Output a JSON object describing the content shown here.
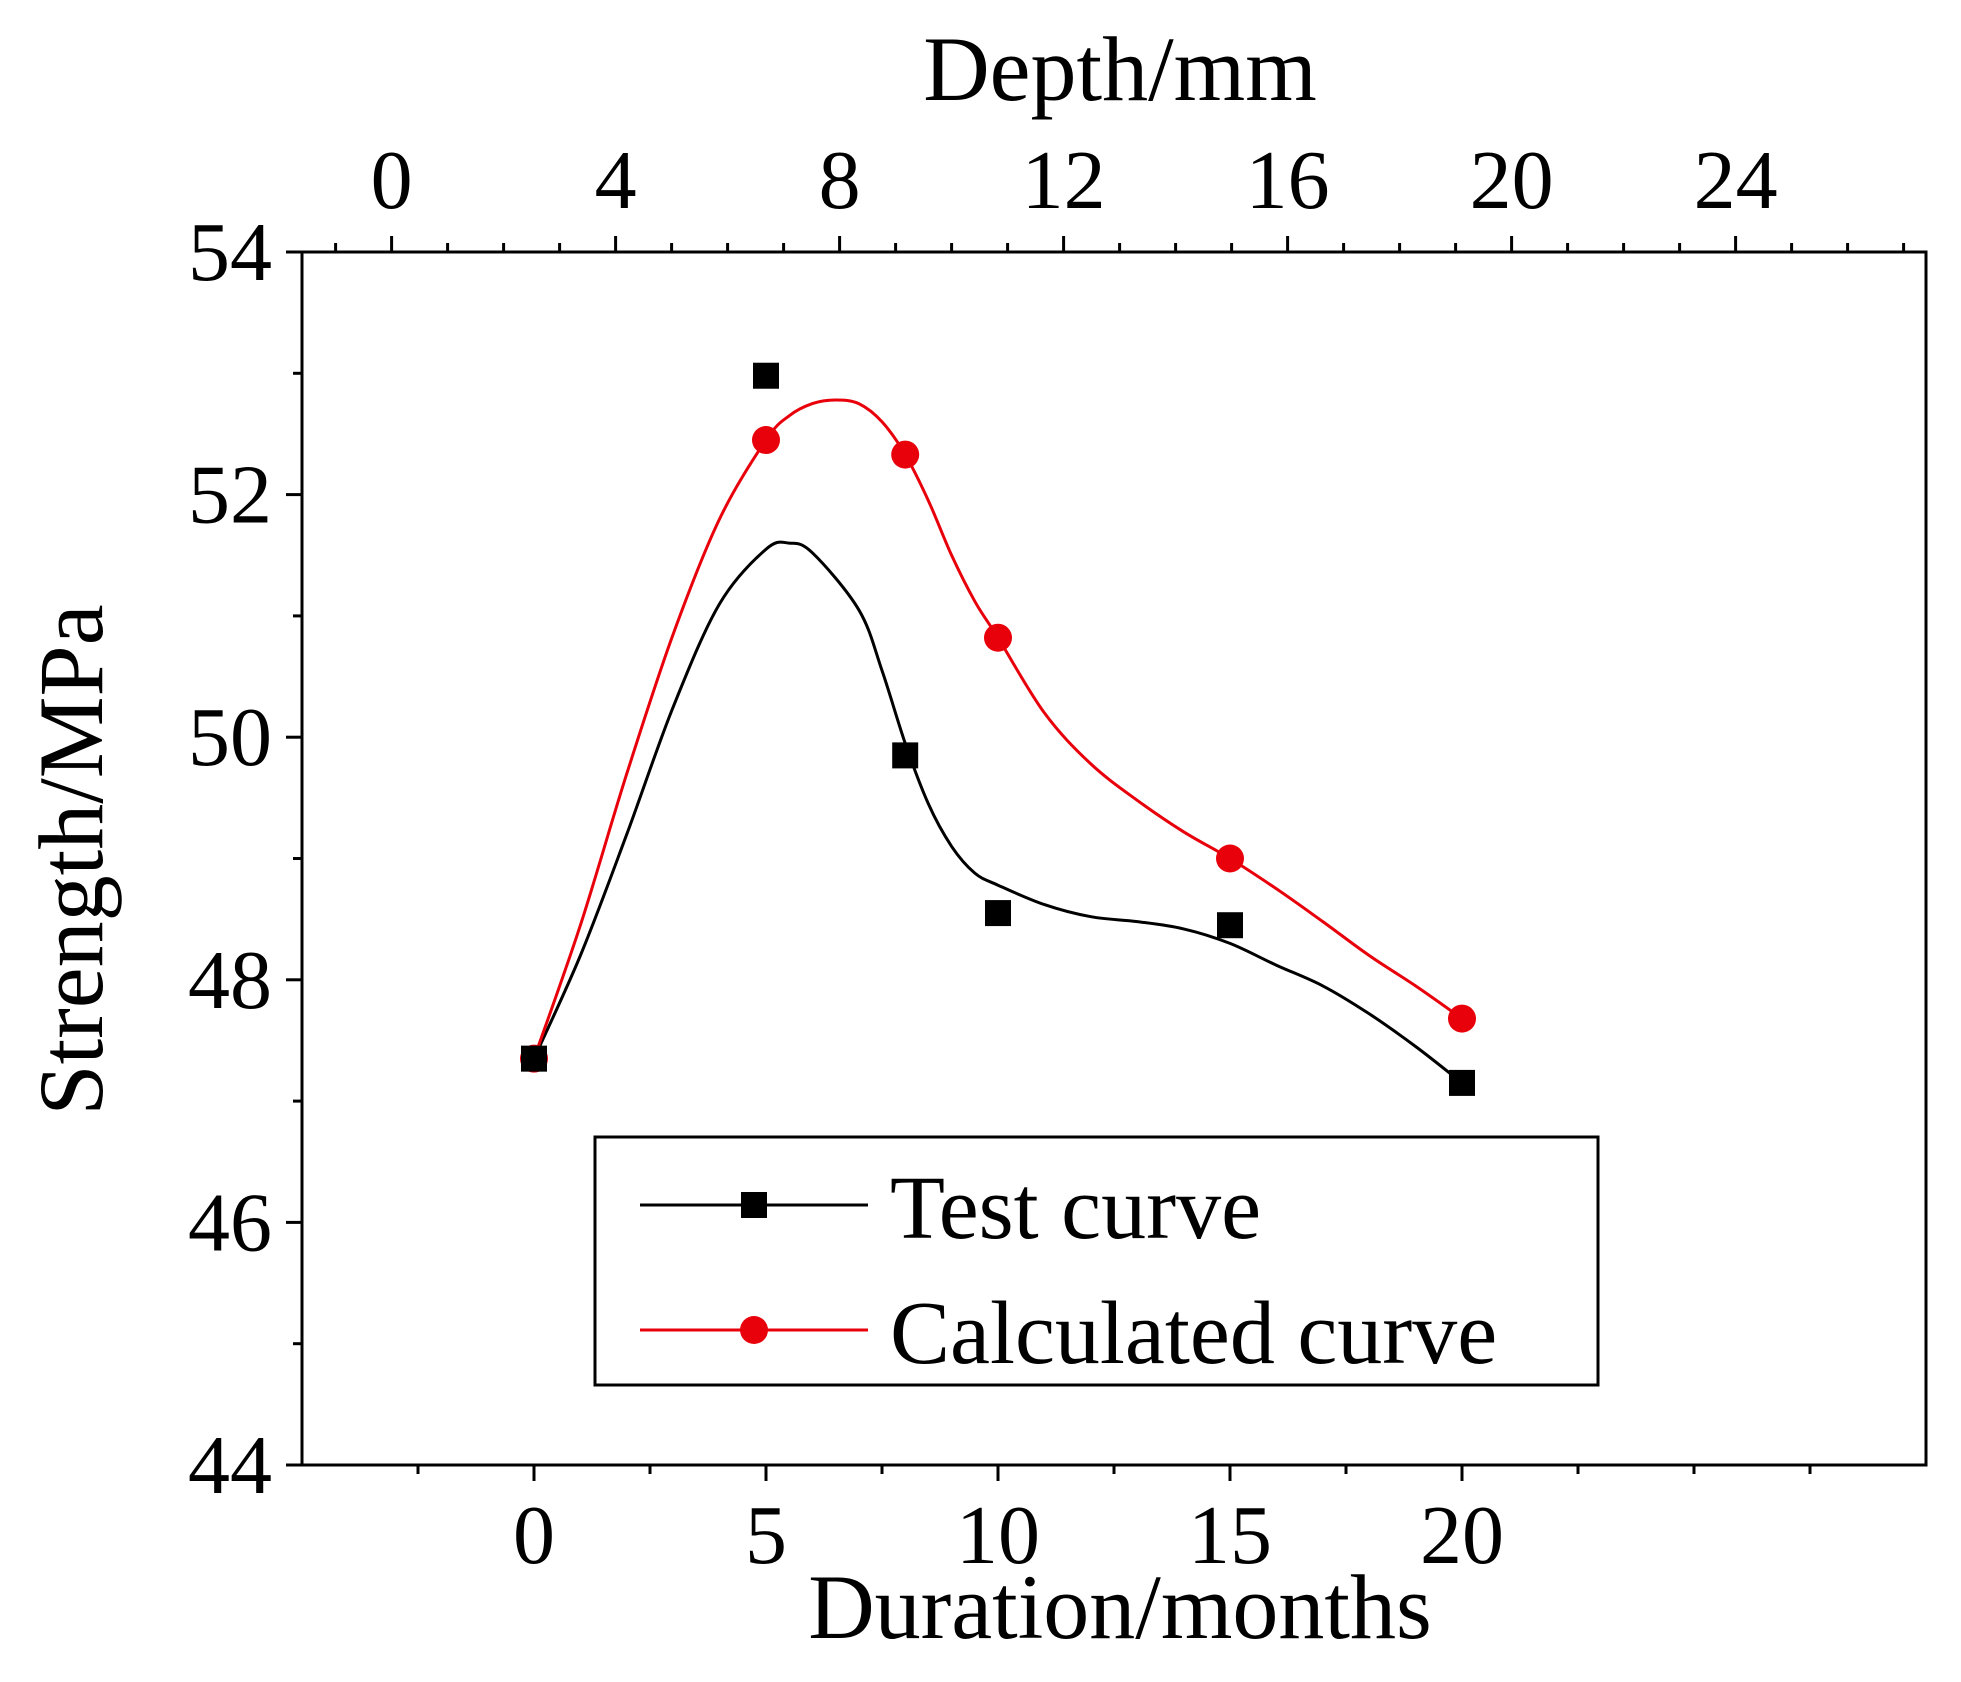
{
  "chart_data": {
    "type": "line",
    "title": "",
    "xlabel": "Duration/months",
    "x2label": "Depth/mm",
    "ylabel": "Strength/MPa",
    "xlim": [
      -5,
      30
    ],
    "x2lim": [
      -1.6,
      27.4
    ],
    "ylim": [
      44,
      54
    ],
    "xticks": [
      "0",
      "5",
      "10",
      "15",
      "20"
    ],
    "x2ticks": [
      "0",
      "4",
      "8",
      "12",
      "16",
      "20",
      "24"
    ],
    "yticks": [
      "44",
      "46",
      "48",
      "50",
      "52",
      "54"
    ],
    "legend_position": "bottom-center",
    "series": [
      {
        "name": "Test curve",
        "color": "#000000",
        "marker": "square",
        "x": [
          0,
          5,
          8,
          10,
          15,
          20
        ],
        "values": [
          47.35,
          52.98,
          49.85,
          48.55,
          48.45,
          47.15
        ],
        "fit_x": [
          0,
          1,
          2,
          3,
          4,
          5,
          5.5,
          6,
          7,
          7.5,
          8,
          8.5,
          9,
          9.5,
          10,
          11,
          12,
          13,
          14,
          15,
          16,
          17,
          18,
          19,
          20
        ],
        "fit_y": [
          47.35,
          48.2,
          49.2,
          50.25,
          51.1,
          51.55,
          51.6,
          51.52,
          51.05,
          50.55,
          49.95,
          49.45,
          49.1,
          48.88,
          48.78,
          48.62,
          48.52,
          48.48,
          48.42,
          48.3,
          48.12,
          47.95,
          47.72,
          47.45,
          47.15
        ]
      },
      {
        "name": "Calculated curve",
        "color": "#e8000b",
        "marker": "circle",
        "x": [
          0,
          5,
          8,
          10,
          15,
          20
        ],
        "values": [
          47.35,
          52.45,
          52.33,
          50.82,
          49.0,
          47.68
        ],
        "fit_x": [
          0,
          1,
          2,
          3,
          4,
          5,
          5.5,
          6,
          6.5,
          7,
          7.5,
          8,
          8.5,
          9,
          9.5,
          10,
          11,
          12,
          13,
          14,
          15,
          16,
          17,
          18,
          19,
          20
        ],
        "fit_y": [
          47.35,
          48.45,
          49.7,
          50.85,
          51.8,
          52.45,
          52.65,
          52.75,
          52.78,
          52.75,
          52.6,
          52.33,
          51.95,
          51.5,
          51.12,
          50.82,
          50.2,
          49.78,
          49.48,
          49.22,
          49.0,
          48.75,
          48.48,
          48.2,
          47.95,
          47.68
        ]
      }
    ]
  },
  "colors": {
    "test": "#000000",
    "calculated": "#e8000b",
    "axis": "#000000",
    "background": "#ffffff"
  }
}
